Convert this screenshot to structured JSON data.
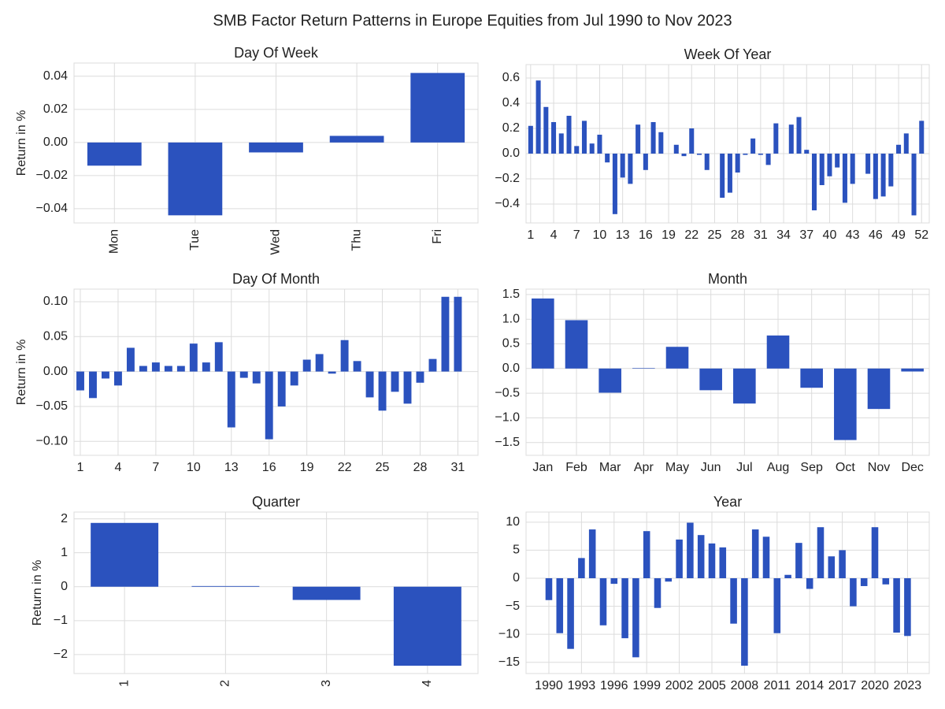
{
  "title": "SMB Factor Return Patterns in Europe Equities from Jul 1990 to Nov 2023",
  "chart_data": [
    {
      "type": "bar",
      "title": "Day Of Week",
      "ylabel": "Return in %",
      "color": "#2b52be",
      "grid": true,
      "xtick_rotation": 90,
      "categories": [
        "Mon",
        "Tue",
        "Wed",
        "Thu",
        "Fri"
      ],
      "values": [
        -0.014,
        -0.044,
        -0.006,
        0.004,
        0.042
      ],
      "ylim": [
        -0.0486,
        0.048
      ],
      "yticks": [
        {
          "value": -0.04,
          "label": "−0.04"
        },
        {
          "value": -0.02,
          "label": "−0.02"
        },
        {
          "value": 0,
          "label": "0.00"
        },
        {
          "value": 0.02,
          "label": "0.02"
        },
        {
          "value": 0.04,
          "label": "0.04"
        }
      ]
    },
    {
      "type": "bar",
      "title": "Week Of Year",
      "color": "#2b52be",
      "grid": true,
      "x": [
        1,
        2,
        3,
        4,
        5,
        6,
        7,
        8,
        9,
        10,
        11,
        12,
        13,
        14,
        15,
        16,
        17,
        18,
        19,
        20,
        21,
        22,
        23,
        24,
        25,
        26,
        27,
        28,
        29,
        30,
        31,
        32,
        33,
        34,
        35,
        36,
        37,
        38,
        39,
        40,
        41,
        42,
        43,
        44,
        45,
        46,
        47,
        48,
        49,
        50,
        51,
        52
      ],
      "values": [
        0.22,
        0.58,
        0.37,
        0.25,
        0.16,
        0.3,
        0.06,
        0.26,
        0.08,
        0.15,
        -0.07,
        -0.48,
        -0.19,
        -0.24,
        0.23,
        -0.13,
        0.25,
        0.17,
        0,
        0.07,
        -0.02,
        0.2,
        -0.01,
        -0.13,
        0,
        -0.35,
        -0.31,
        -0.15,
        -0.01,
        0.12,
        -0.01,
        -0.09,
        0.24,
        0,
        0.23,
        0.29,
        0.03,
        -0.45,
        -0.25,
        -0.18,
        -0.11,
        -0.39,
        -0.24,
        0,
        -0.16,
        -0.36,
        -0.34,
        -0.26,
        0.07,
        0.16,
        -0.49,
        0.26
      ],
      "xlim": [
        0.4,
        53
      ],
      "xticks": [
        1,
        4,
        7,
        10,
        13,
        16,
        19,
        22,
        25,
        28,
        31,
        34,
        37,
        40,
        43,
        46,
        49,
        52
      ],
      "ylim": [
        -0.55,
        0.706
      ],
      "yticks": [
        {
          "value": -0.4,
          "label": "−0.4"
        },
        {
          "value": -0.2,
          "label": "−0.2"
        },
        {
          "value": 0,
          "label": "0.0"
        },
        0.2,
        0.4,
        0.6
      ]
    },
    {
      "type": "bar",
      "title": "Day Of Month",
      "ylabel": "Return in %",
      "color": "#2b52be",
      "grid": true,
      "x": [
        1,
        2,
        3,
        4,
        5,
        6,
        7,
        8,
        9,
        10,
        11,
        12,
        13,
        14,
        15,
        16,
        17,
        18,
        19,
        20,
        21,
        22,
        23,
        24,
        25,
        26,
        27,
        28,
        29,
        30,
        31
      ],
      "values": [
        -0.027,
        -0.038,
        -0.01,
        -0.02,
        0.034,
        0.008,
        0.013,
        0.008,
        0.008,
        0.04,
        0.013,
        0.042,
        -0.08,
        -0.009,
        -0.017,
        -0.097,
        -0.05,
        -0.02,
        0.017,
        0.025,
        -0.003,
        0.045,
        0.015,
        -0.037,
        -0.056,
        -0.029,
        -0.046,
        -0.016,
        0.018,
        0.107,
        0.107
      ],
      "xlim": [
        0.5,
        32.6
      ],
      "xticks": [
        1,
        4,
        7,
        10,
        13,
        16,
        19,
        22,
        25,
        28,
        31
      ],
      "ylim": [
        -0.12,
        0.118
      ],
      "yticks": [
        {
          "value": -0.1,
          "label": "−0.10"
        },
        {
          "value": -0.05,
          "label": "−0.05"
        },
        {
          "value": 0,
          "label": "0.00"
        },
        {
          "value": 0.05,
          "label": "0.05"
        },
        {
          "value": 0.1,
          "label": "0.10"
        }
      ]
    },
    {
      "type": "bar",
      "title": "Month",
      "color": "#2b52be",
      "grid": true,
      "categories": [
        "Jan",
        "Feb",
        "Mar",
        "Apr",
        "May",
        "Jun",
        "Jul",
        "Aug",
        "Sep",
        "Oct",
        "Nov",
        "Dec"
      ],
      "values": [
        1.42,
        0.98,
        -0.49,
        0.01,
        0.44,
        -0.44,
        -0.71,
        0.67,
        -0.39,
        -1.45,
        -0.82,
        -0.06
      ],
      "ylim": [
        -1.76,
        1.61
      ],
      "yticks": [
        {
          "value": -1.5,
          "label": "−1.5"
        },
        {
          "value": -1,
          "label": "−1.0"
        },
        {
          "value": -0.5,
          "label": "−0.5"
        },
        {
          "value": 0,
          "label": "0.0"
        },
        0.5,
        {
          "value": 1,
          "label": "1.0"
        },
        1.5
      ]
    },
    {
      "type": "bar",
      "title": "Quarter",
      "ylabel": "Return in %",
      "color": "#2b52be",
      "grid": true,
      "xtick_rotation": 90,
      "categories": [
        "1",
        "2",
        "3",
        "4"
      ],
      "values": [
        1.88,
        0.02,
        -0.39,
        -2.33
      ],
      "ylim": [
        -2.56,
        2.2
      ],
      "yticks": [
        {
          "value": -2,
          "label": "−2"
        },
        {
          "value": -1,
          "label": "−1"
        },
        0,
        1,
        2
      ]
    },
    {
      "type": "bar",
      "title": "Year",
      "color": "#2b52be",
      "grid": true,
      "x": [
        1990,
        1991,
        1992,
        1993,
        1994,
        1995,
        1996,
        1997,
        1998,
        1999,
        2000,
        2001,
        2002,
        2003,
        2004,
        2005,
        2006,
        2007,
        2008,
        2009,
        2010,
        2011,
        2012,
        2013,
        2014,
        2015,
        2016,
        2017,
        2018,
        2019,
        2020,
        2021,
        2022,
        2023
      ],
      "values": [
        -3.9,
        -9.8,
        -12.6,
        3.6,
        8.7,
        -8.4,
        -1.0,
        -10.7,
        -14.1,
        8.4,
        -5.3,
        -0.6,
        6.9,
        9.9,
        7.7,
        6.2,
        5.5,
        -8.1,
        -15.6,
        8.7,
        7.4,
        -9.8,
        0.6,
        6.3,
        -1.9,
        9.1,
        3.9,
        5.0,
        -5.0,
        -1.4,
        9.1,
        -1.1,
        -9.7,
        -10.3
      ],
      "xlim": [
        1987.9,
        2025
      ],
      "xticks": [
        1990,
        1993,
        1996,
        1999,
        2002,
        2005,
        2008,
        2011,
        2014,
        2017,
        2020,
        2023
      ],
      "ylim": [
        -17,
        11.8
      ],
      "yticks": [
        {
          "value": -15,
          "label": "−15"
        },
        {
          "value": -10,
          "label": "−10"
        },
        {
          "value": -5,
          "label": "−5"
        },
        0,
        5,
        10
      ]
    }
  ]
}
